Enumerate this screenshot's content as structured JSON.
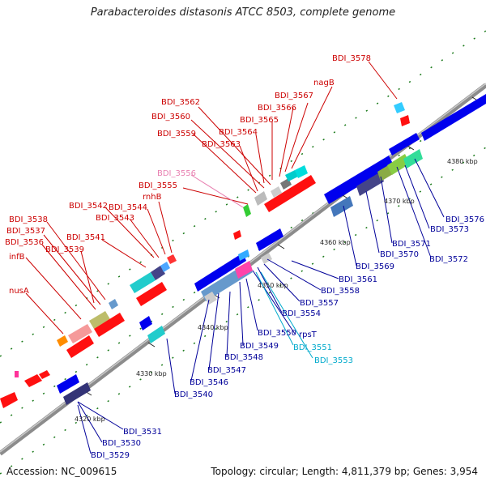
{
  "title": "Parabacteroides distasonis ATCC 8503, complete genome",
  "footer": {
    "accession": "Accession: NC_009615",
    "summary": "Topology: circular; Length: 4,811,379 bp; Genes: 3,954"
  },
  "colors": {
    "label_forward": "#cc0000",
    "label_reverse": "#000099",
    "label_pink": "#e87fb0",
    "label_cyan": "#00aacc",
    "backbone": "#8c8c8c",
    "gene_forward": "#ff0000",
    "gene_reverse": "#0000ee",
    "tick_green": "#008800"
  },
  "ruler": [
    "4320 kbp",
    "4330 kbp",
    "4340 kbp",
    "4350 kbp",
    "4360 kbp",
    "4370 kbp",
    "4380 kbp"
  ],
  "forward_labels": [
    "BDI_3578",
    "nagB",
    "BDI_3567",
    "BDI_3562",
    "BDI_3566",
    "BDI_3560",
    "BDI_3565",
    "BDI_3559",
    "BDI_3564",
    "BDI_3563",
    "BDI_3556",
    "BDI_3555",
    "rnhB",
    "BDI_3542",
    "BDI_3544",
    "BDI_3538",
    "BDI_3543",
    "BDI_3537",
    "BDI_3541",
    "BDI_3536",
    "BDI_3539",
    "infB",
    "nusA"
  ],
  "reverse_labels": [
    "BDI_3576",
    "BDI_3573",
    "BDI_3571",
    "BDI_3572",
    "BDI_3570",
    "BDI_3569",
    "BDI_3561",
    "BDI_3558",
    "BDI_3557",
    "BDI_3554",
    "rpsT",
    "BDI_3550",
    "BDI_3551",
    "BDI_3549",
    "BDI_3553",
    "BDI_3548",
    "BDI_3547",
    "BDI_3546",
    "BDI_3540",
    "BDI_3531",
    "BDI_3530",
    "BDI_3529"
  ]
}
